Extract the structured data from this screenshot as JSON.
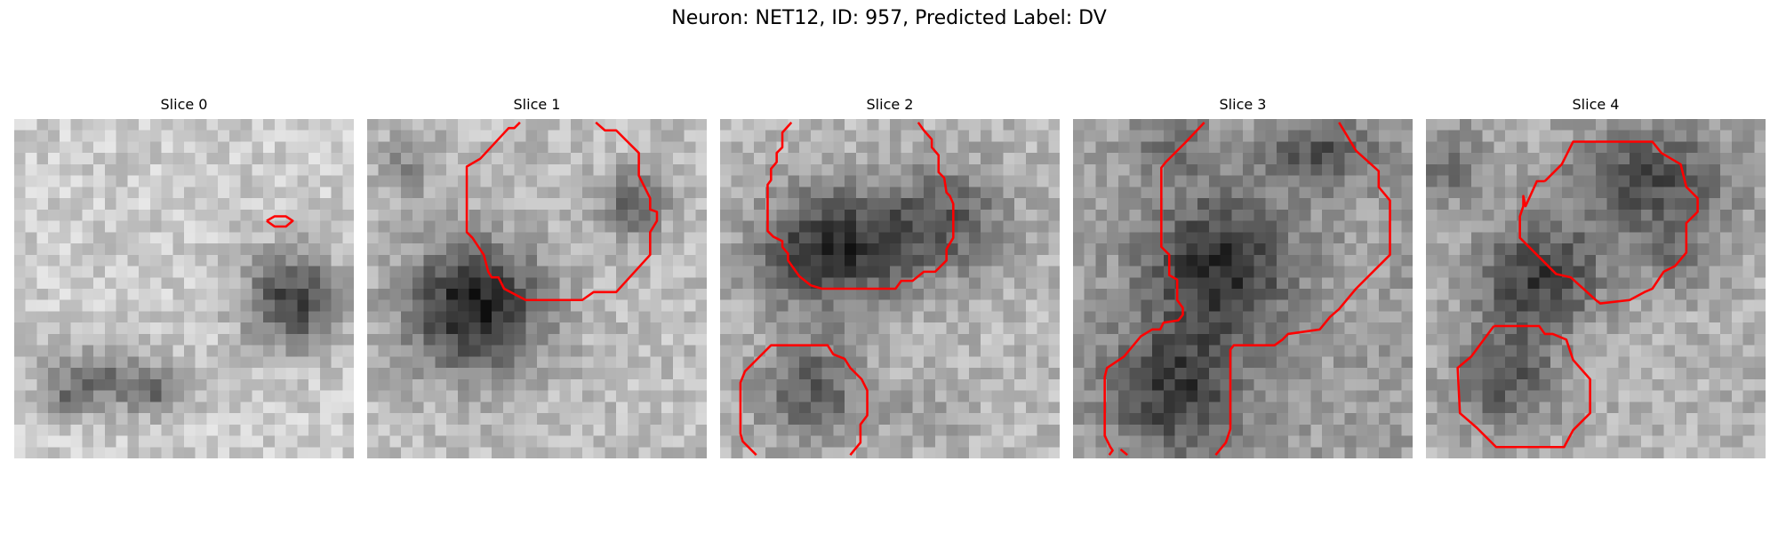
{
  "figure": {
    "title": "Neuron: NET12, ID: 957, Predicted Label: DV"
  },
  "panels": [
    {
      "title": "Slice 0"
    },
    {
      "title": "Slice 1"
    },
    {
      "title": "Slice 2"
    },
    {
      "title": "Slice 3"
    },
    {
      "title": "Slice 4"
    }
  ],
  "colors": {
    "contour": "#ff0000",
    "colormap": "gray"
  }
}
